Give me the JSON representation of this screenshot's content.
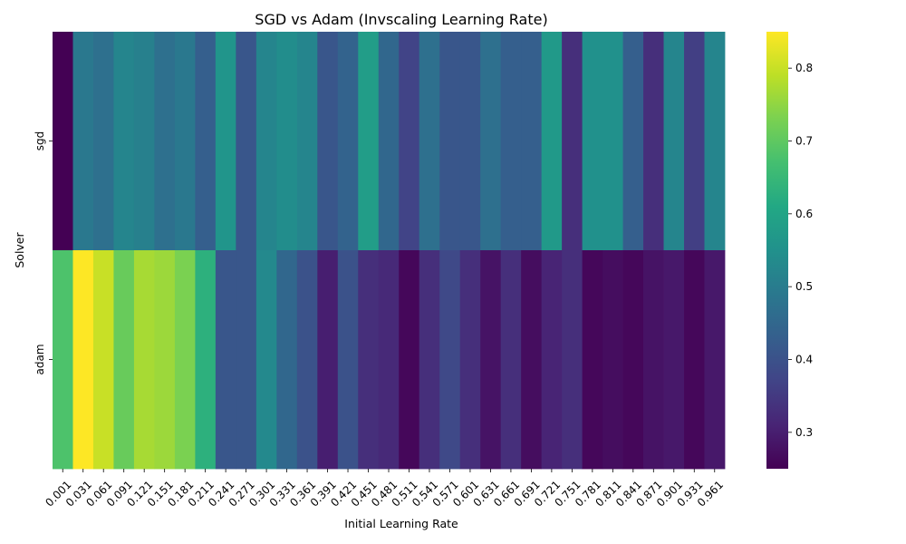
{
  "chart_data": {
    "type": "heatmap",
    "title": "SGD vs Adam (Invscaling Learning Rate)",
    "xlabel": "Initial Learning Rate",
    "ylabel": "Solver",
    "rows": [
      "sgd",
      "adam"
    ],
    "columns": [
      "0.001",
      "0.031",
      "0.061",
      "0.091",
      "0.121",
      "0.151",
      "0.181",
      "0.211",
      "0.241",
      "0.271",
      "0.301",
      "0.331",
      "0.361",
      "0.391",
      "0.421",
      "0.451",
      "0.481",
      "0.511",
      "0.541",
      "0.571",
      "0.601",
      "0.631",
      "0.661",
      "0.691",
      "0.721",
      "0.751",
      "0.781",
      "0.811",
      "0.841",
      "0.871",
      "0.901",
      "0.931",
      "0.961"
    ],
    "values": [
      [
        0.25,
        0.49,
        0.47,
        0.52,
        0.51,
        0.47,
        0.49,
        0.43,
        0.56,
        0.41,
        0.52,
        0.54,
        0.52,
        0.41,
        0.44,
        0.58,
        0.45,
        0.37,
        0.47,
        0.41,
        0.41,
        0.47,
        0.43,
        0.43,
        0.57,
        0.33,
        0.55,
        0.55,
        0.43,
        0.33,
        0.52,
        0.36,
        0.52
      ],
      [
        0.68,
        0.85,
        0.8,
        0.71,
        0.77,
        0.76,
        0.73,
        0.63,
        0.41,
        0.41,
        0.53,
        0.45,
        0.4,
        0.3,
        0.4,
        0.33,
        0.32,
        0.26,
        0.33,
        0.38,
        0.33,
        0.28,
        0.33,
        0.27,
        0.31,
        0.33,
        0.26,
        0.27,
        0.26,
        0.28,
        0.29,
        0.26,
        0.29
      ]
    ],
    "colorbar": {
      "min": 0.25,
      "max": 0.85,
      "ticks": [
        0.3,
        0.4,
        0.5,
        0.6,
        0.7,
        0.8
      ],
      "colormap": "viridis"
    }
  }
}
